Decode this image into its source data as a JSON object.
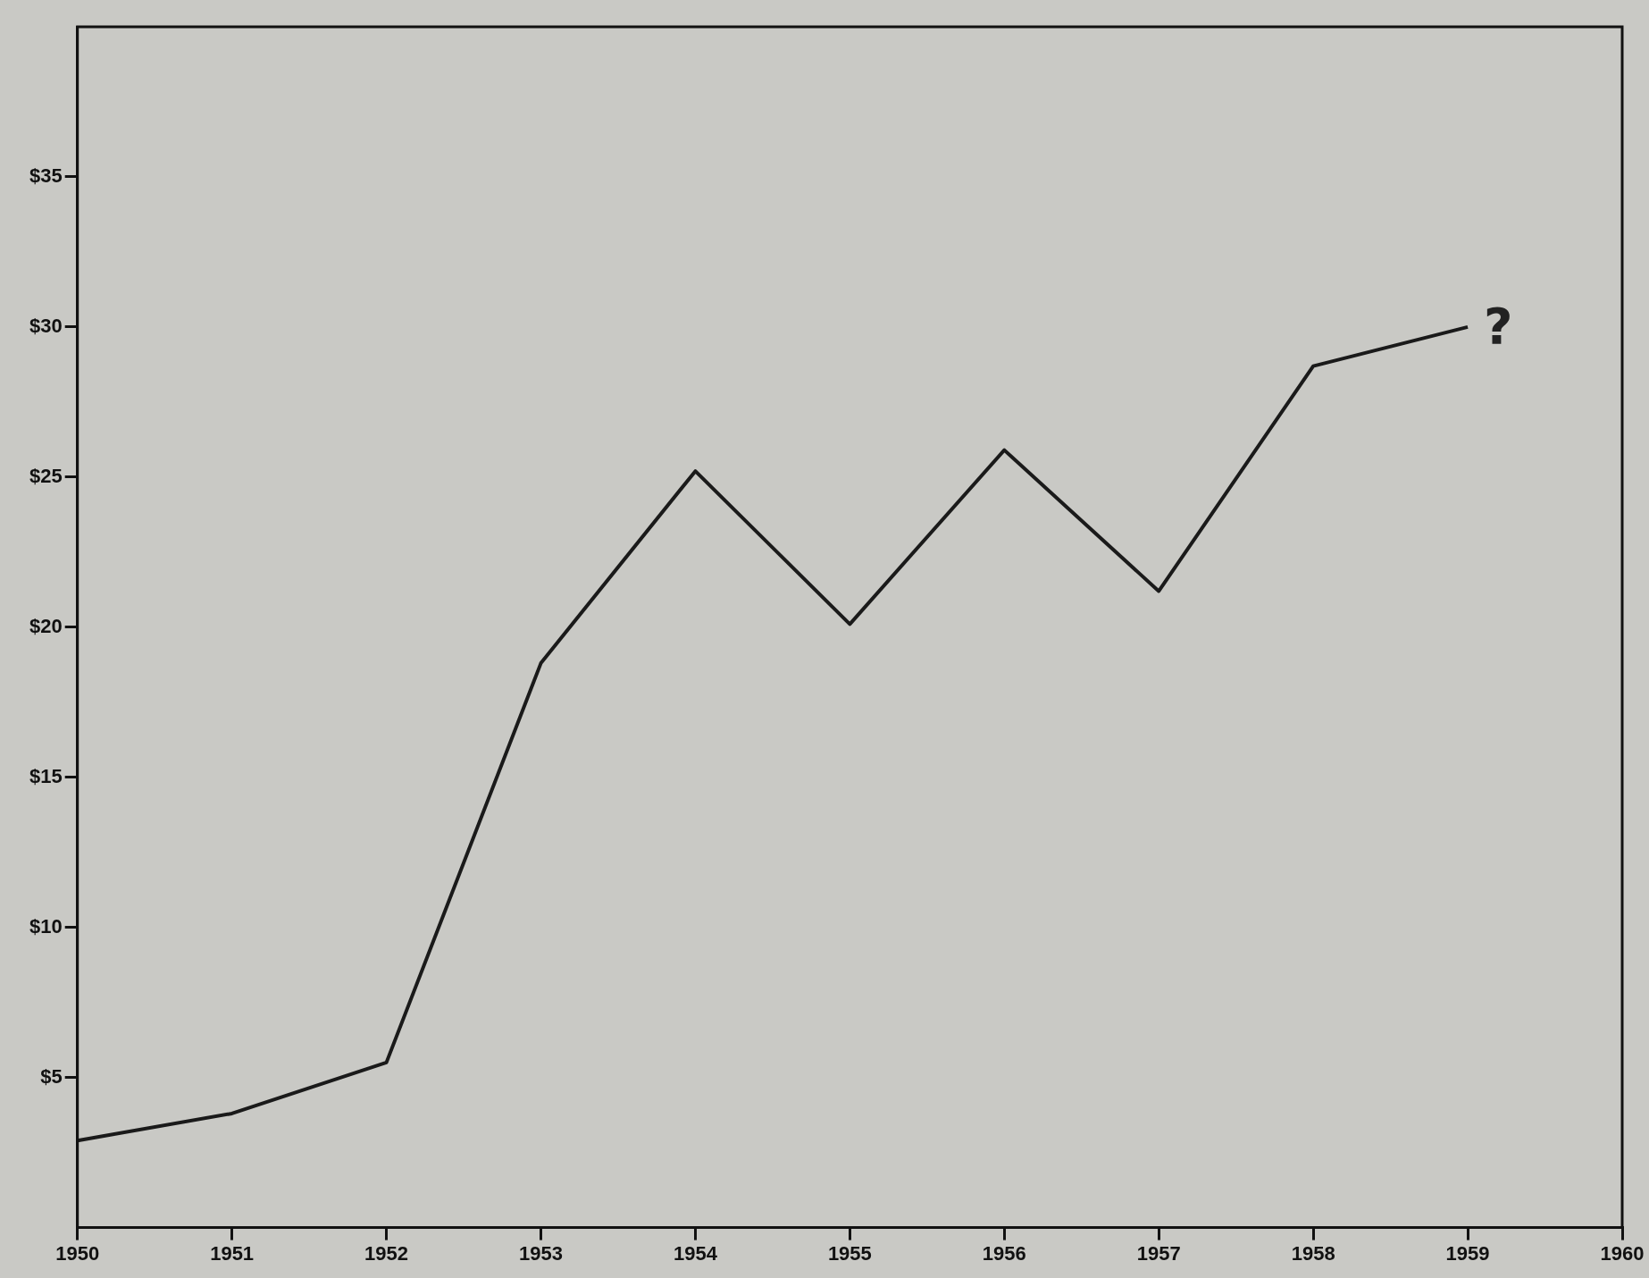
{
  "chart_data": {
    "type": "line",
    "x": [
      1950,
      1951,
      1952,
      1953,
      1954,
      1955,
      1956,
      1957,
      1958,
      1959
    ],
    "values": [
      2.9,
      3.8,
      5.5,
      18.8,
      25.2,
      20.1,
      25.9,
      21.2,
      28.7,
      30.0
    ],
    "color": "#1a1a1a",
    "xlim": [
      1950,
      1960
    ],
    "xticks": [
      1950,
      1951,
      1952,
      1953,
      1954,
      1955,
      1956,
      1957,
      1958,
      1959,
      1960
    ],
    "ylim": [
      0,
      40
    ],
    "yticks": [
      {
        "value": 5,
        "label": "$5"
      },
      {
        "value": 10,
        "label": "$10"
      },
      {
        "value": 15,
        "label": "$15"
      },
      {
        "value": 20,
        "label": "$20"
      },
      {
        "value": 25,
        "label": "$25"
      },
      {
        "value": 30,
        "label": "$30"
      },
      {
        "value": 35,
        "label": "$35"
      }
    ],
    "annotations": [
      {
        "text": "?",
        "x": 1959,
        "y": 30
      }
    ],
    "grid": false,
    "legend": false,
    "marker": "none",
    "line_style": "solid"
  }
}
